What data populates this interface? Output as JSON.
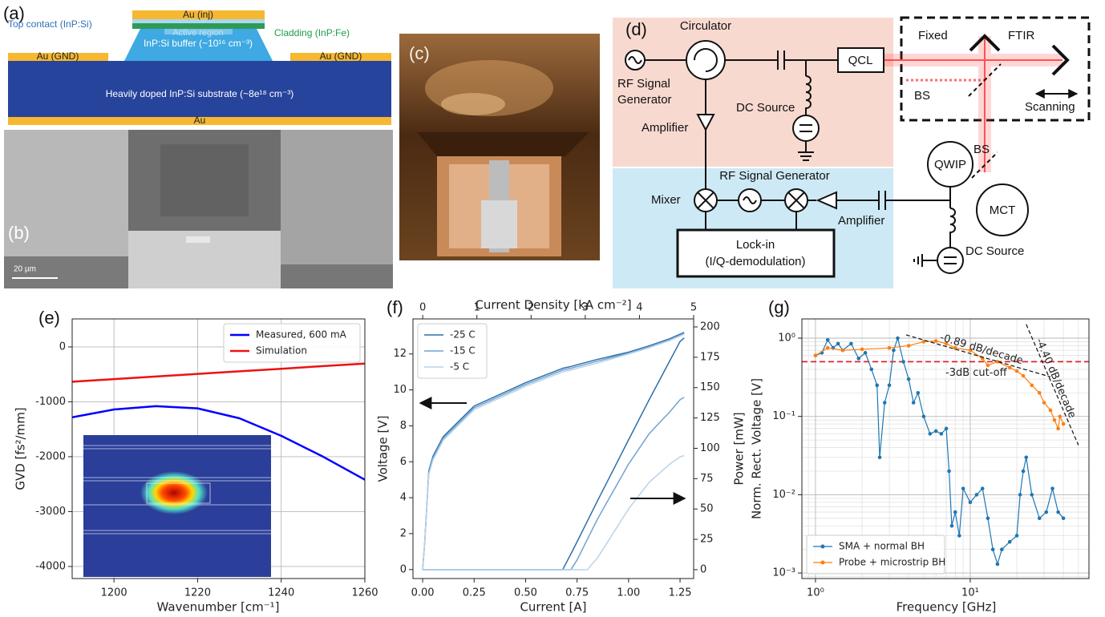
{
  "panels": {
    "a": "(a)",
    "b": "(b)",
    "c": "(c)",
    "d": "(d)"
  },
  "panel_a": {
    "top_contact": "Top contact (InP:Si)",
    "au_inj": "Au (inj)",
    "active_region": "Active region",
    "buffer": "InP:Si buffer (~10¹⁶ cm⁻³)",
    "cladding": "Cladding (InP:Fe)",
    "au_gnd_left": "Au (GND)",
    "au_gnd_right": "Au (GND)",
    "substrate": "Heavily doped InP:Si substrate (~8e¹⁸ cm⁻³)",
    "au_bottom": "Au"
  },
  "panel_b": {
    "scale_bar": "20 µm"
  },
  "panel_d": {
    "circulator": "Circulator",
    "rf_gen_1": "RF Signal",
    "rf_gen_2": "Generator",
    "dc_source_top": "DC Source",
    "amplifier_top": "Amplifier",
    "qcl": "QCL",
    "fixed": "Fixed",
    "ftir": "FTIR",
    "bs_ftir": "BS",
    "scanning": "Scanning",
    "rf_gen_bottom": "RF Signal Generator",
    "mixer": "Mixer",
    "amplifier_bottom": "Amplifier",
    "lockin_1": "Lock-in",
    "lockin_2": "(I/Q-demodulation)",
    "qwip": "QWIP",
    "bs_detect": "BS",
    "mct": "MCT",
    "dc_source_bottom": "DC Source"
  },
  "chart_data": [
    {
      "type": "line",
      "panel_label": "(e)",
      "xlabel": "Wavenumber [cm⁻¹]",
      "ylabel": "GVD [fs²/mm]",
      "x": [
        1190,
        1200,
        1210,
        1220,
        1230,
        1240,
        1250,
        1260
      ],
      "series": [
        {
          "name": "Measured, 600 mA",
          "color": "#0000ff",
          "values": [
            -1283,
            -1140,
            -1080,
            -1120,
            -1300,
            -1620,
            -2000,
            -2420
          ]
        },
        {
          "name": "Simulation",
          "color": "#ee1111",
          "values": [
            -634,
            -587,
            -540,
            -492,
            -445,
            -398,
            -350,
            -303
          ]
        }
      ],
      "xlim": [
        1190,
        1260
      ],
      "xticks": [
        1200,
        1220,
        1240,
        1260
      ],
      "ylim": [
        -4220,
        510
      ],
      "yticks": [
        0,
        -1000,
        -2000,
        -3000,
        -4000
      ],
      "grid": true,
      "legend": "upper right"
    },
    {
      "type": "line",
      "panel_label": "(f)",
      "xlabel": "Current [A]",
      "x2label": "Current Density [kA cm⁻²]",
      "ylabel": "Voltage [V]",
      "y2label": "Power [mW]",
      "x": [
        0,
        0.01,
        0.03,
        0.05,
        0.1,
        0.25,
        0.5,
        0.68,
        0.72,
        0.75,
        0.8,
        0.85,
        1.0,
        1.1,
        1.2,
        1.25,
        1.27
      ],
      "series": [
        {
          "name": "-25 C",
          "color": "#2e6fa8",
          "values": [
            0,
            1.5,
            5.5,
            6.3,
            7.4,
            9.1,
            10.4,
            11.2,
            11.3,
            11.4,
            11.55,
            11.7,
            12.1,
            12.45,
            12.85,
            13.1,
            13.2
          ]
        },
        {
          "name": "-15 C",
          "color": "#6fa3cf",
          "values": [
            0,
            1.5,
            5.4,
            6.2,
            7.3,
            9.0,
            10.3,
            11.1,
            11.2,
            11.3,
            11.45,
            11.6,
            12.05,
            12.4,
            12.8,
            13.05,
            13.15
          ]
        },
        {
          "name": "-5 C",
          "color": "#b9d3ea",
          "values": [
            0,
            1.5,
            5.3,
            6.1,
            7.2,
            8.9,
            10.2,
            11.0,
            11.1,
            11.2,
            11.35,
            11.5,
            12.0,
            12.35,
            12.75,
            13.0,
            13.1
          ]
        },
        {
          "color": "#2e6fa8",
          "axis": "y2",
          "values": [
            0,
            0,
            0,
            0,
            0,
            0,
            0,
            0,
            13,
            23,
            40,
            57,
            107,
            140,
            172,
            188,
            191
          ]
        },
        {
          "color": "#6fa3cf",
          "axis": "y2",
          "values": [
            0,
            0,
            0,
            0,
            0,
            0,
            0,
            0,
            0,
            8,
            25,
            42,
            87,
            112,
            130,
            140,
            142
          ]
        },
        {
          "color": "#b9d3ea",
          "axis": "y2",
          "values": [
            0,
            0,
            0,
            0,
            0,
            0,
            0,
            0,
            0,
            0,
            0,
            10,
            50,
            72,
            87,
            93,
            94
          ]
        }
      ],
      "xlim": [
        -0.047,
        1.316
      ],
      "xticks": [
        {
          "value": 0,
          "label": "0.00"
        },
        {
          "value": 0.25,
          "label": "0.25"
        },
        {
          "value": 0.5,
          "label": "0.50"
        },
        {
          "value": 0.75,
          "label": "0.75"
        },
        {
          "value": 1,
          "label": "1.00"
        },
        {
          "value": 1.25,
          "label": "1.25"
        }
      ],
      "x2lim": [
        -0.18,
        5.0
      ],
      "x2ticks": [
        0,
        1,
        2,
        3,
        4,
        5
      ],
      "ylim": [
        -0.5,
        13.95
      ],
      "yticks": [
        0,
        2,
        4,
        6,
        8,
        10,
        12
      ],
      "y2lim": [
        -7.3,
        206.6
      ],
      "y2ticks": [
        0,
        25,
        50,
        75,
        100,
        125,
        150,
        175,
        200
      ],
      "grid": false,
      "legend": "upper left"
    },
    {
      "type": "line",
      "panel_label": "(g)",
      "xlabel": "Frequency [GHz]",
      "ylabel": "Norm. Rect. Voltage [V]",
      "xscale": "log",
      "yscale": "log",
      "series": [
        {
          "name": "SMA + normal BH",
          "color": "#1f77b4",
          "marker": "o",
          "x": [
            1,
            1.1,
            1.2,
            1.3,
            1.4,
            1.5,
            1.7,
            1.9,
            2.1,
            2.3,
            2.5,
            2.6,
            2.8,
            3,
            3.2,
            3.4,
            3.7,
            4,
            4.3,
            4.6,
            5,
            5.5,
            6,
            6.5,
            7,
            7.3,
            7.6,
            8,
            8.5,
            9,
            10,
            11,
            12,
            13,
            14,
            15,
            16,
            18,
            20,
            21,
            22,
            23,
            25,
            28,
            31,
            34,
            37,
            40
          ],
          "values": [
            0.6,
            0.65,
            0.95,
            0.75,
            0.85,
            0.7,
            0.85,
            0.55,
            0.65,
            0.4,
            0.25,
            0.03,
            0.15,
            0.25,
            0.7,
            1.0,
            0.5,
            0.3,
            0.15,
            0.2,
            0.1,
            0.06,
            0.065,
            0.06,
            0.07,
            0.02,
            0.004,
            0.006,
            0.003,
            0.012,
            0.008,
            0.01,
            0.012,
            0.005,
            0.002,
            0.0013,
            0.002,
            0.0025,
            0.003,
            0.01,
            0.02,
            0.03,
            0.01,
            0.005,
            0.006,
            0.012,
            0.006,
            0.005
          ]
        },
        {
          "name": "Probe + microstrip BH",
          "color": "#ff7f0e",
          "marker": "o",
          "x": [
            1,
            1.2,
            1.5,
            2,
            3,
            4,
            5,
            6,
            7,
            8,
            10,
            12,
            13,
            15,
            18,
            20,
            22,
            25,
            28,
            30,
            33,
            35,
            37,
            38,
            40
          ],
          "values": [
            0.6,
            0.75,
            0.7,
            0.72,
            0.75,
            0.8,
            0.9,
            0.92,
            0.85,
            0.75,
            0.7,
            0.55,
            0.45,
            0.5,
            0.42,
            0.38,
            0.33,
            0.25,
            0.2,
            0.15,
            0.12,
            0.09,
            0.07,
            0.1,
            0.08
          ]
        }
      ],
      "fits": [
        {
          "label": "-0.89 dB/decade",
          "x": [
            3.85,
            33
          ],
          "values": [
            1.1,
            0.32
          ]
        },
        {
          "label": "-4.40 dB/decade",
          "x": [
            23,
            50
          ],
          "values": [
            1.5,
            0.043
          ]
        }
      ],
      "hline": {
        "value": 0.5,
        "label": "-3dB cut-off",
        "color": "#e0242b"
      },
      "xlim": [
        0.817,
        58.5
      ],
      "xticks": [
        {
          "value": 1,
          "label": "10⁰"
        },
        {
          "value": 10,
          "label": "10¹"
        }
      ],
      "ylim": [
        0.00085,
        1.76
      ],
      "yticks": [
        {
          "value": 0.001,
          "label": "10⁻³"
        },
        {
          "value": 0.01,
          "label": "10⁻²"
        },
        {
          "value": 0.1,
          "label": "10⁻¹"
        },
        {
          "value": 1,
          "label": "10⁰"
        }
      ],
      "grid": true,
      "minor_grid": true,
      "legend": "lower left"
    }
  ]
}
